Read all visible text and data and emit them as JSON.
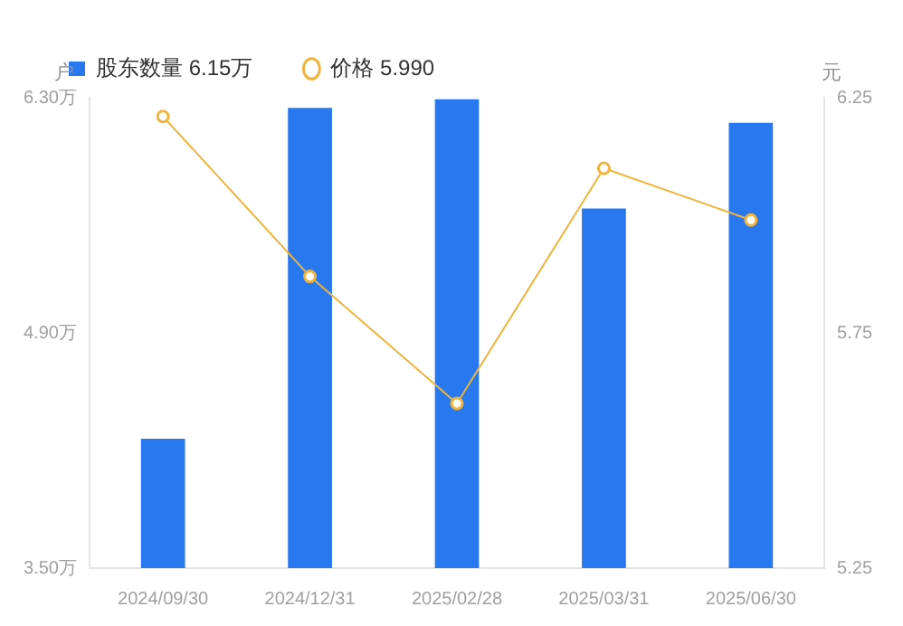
{
  "chart_data": {
    "type": "bar",
    "ylabel": "户",
    "y2label": "元",
    "categories": [
      "2024/09/30",
      "2024/12/31",
      "2025/02/28",
      "2025/03/31",
      "2025/06/30"
    ],
    "series": [
      {
        "name": "股东数量 6.15万",
        "color": "#2878f0",
        "values": [
          4.27,
          6.24,
          6.29,
          5.64,
          6.15
        ]
      },
      {
        "name": "价格 5.990",
        "type": "line",
        "axis": "y2",
        "color": "#f0b43c",
        "values": [
          6.21,
          5.87,
          5.6,
          6.1,
          5.99
        ]
      }
    ],
    "ylim": [
      3.5,
      6.3
    ],
    "yticks": [
      {
        "value": 3.5,
        "label": "3.50万"
      },
      {
        "value": 4.9,
        "label": "4.90万"
      },
      {
        "value": 6.3,
        "label": "6.30万"
      }
    ],
    "y2lim": [
      5.25,
      6.25
    ],
    "y2ticks": [
      5.25,
      5.75,
      6.25
    ],
    "grid": false,
    "legend": "top left",
    "marker": "circle",
    "line_style": "solid"
  }
}
